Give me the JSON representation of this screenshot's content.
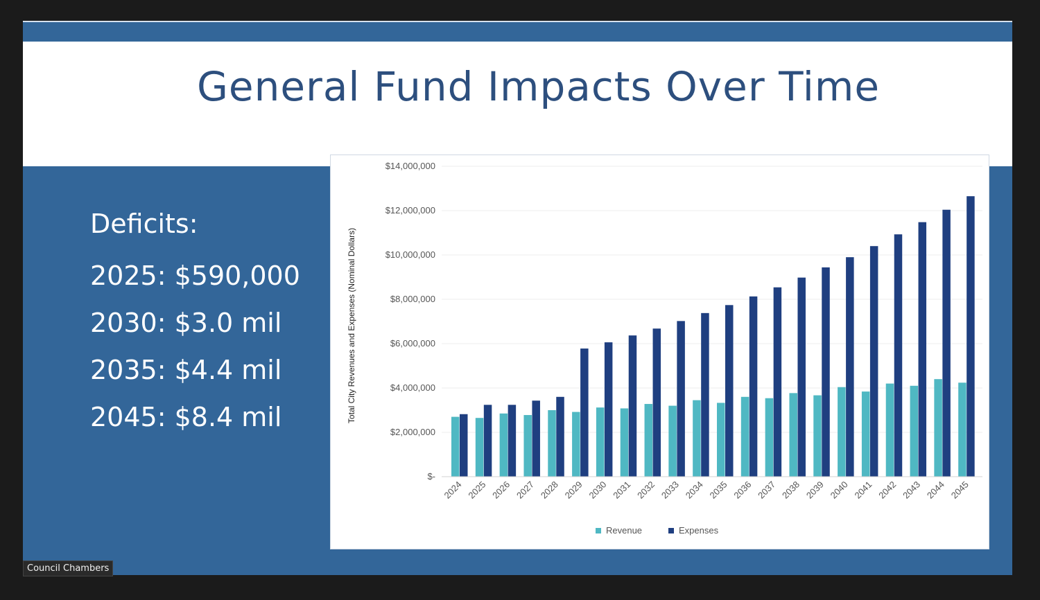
{
  "slide": {
    "title": "General Fund Impacts Over Time",
    "deficits": {
      "heading": "Deficits:",
      "lines": [
        "2025: $590,000",
        "2030: $3.0 mil",
        "2035: $4.4 mil",
        "2045: $8.4 mil"
      ]
    }
  },
  "caption": "Council Chambers",
  "colors": {
    "slide_background": "#336699",
    "title_text": "#2d4f7e",
    "revenue": "#4fb8c3",
    "expenses": "#1f3f80"
  },
  "chart_data": {
    "type": "bar",
    "title": "",
    "xlabel": "",
    "ylabel": "Total City Revenues and Expenses (Nominal Dollars)",
    "ylim": [
      0,
      14000000
    ],
    "ytick_labels": [
      "$-",
      "$2,000,000",
      "$4,000,000",
      "$6,000,000",
      "$8,000,000",
      "$10,000,000",
      "$12,000,000",
      "$14,000,000"
    ],
    "ytick_values": [
      0,
      2000000,
      4000000,
      6000000,
      8000000,
      10000000,
      12000000,
      14000000
    ],
    "categories": [
      "2024",
      "2025",
      "2026",
      "2027",
      "2028",
      "2029",
      "2030",
      "2031",
      "2032",
      "2033",
      "2034",
      "2035",
      "2036",
      "2037",
      "2038",
      "2039",
      "2040",
      "2041",
      "2042",
      "2043",
      "2044",
      "2045"
    ],
    "series": [
      {
        "name": "Revenue",
        "color": "#4fb8c3",
        "values": [
          2700000,
          2650000,
          2850000,
          2780000,
          3000000,
          2920000,
          3120000,
          3080000,
          3280000,
          3200000,
          3450000,
          3330000,
          3600000,
          3540000,
          3770000,
          3670000,
          4040000,
          3840000,
          4200000,
          4100000,
          4400000,
          4240000
        ]
      },
      {
        "name": "Expenses",
        "color": "#1f3f80",
        "values": [
          2820000,
          3240000,
          3240000,
          3430000,
          3600000,
          5780000,
          6060000,
          6370000,
          6680000,
          7020000,
          7380000,
          7740000,
          8130000,
          8540000,
          8980000,
          9440000,
          9900000,
          10400000,
          10930000,
          11480000,
          12040000,
          12650000
        ]
      }
    ],
    "grid": true,
    "legend_position": "bottom-center"
  }
}
